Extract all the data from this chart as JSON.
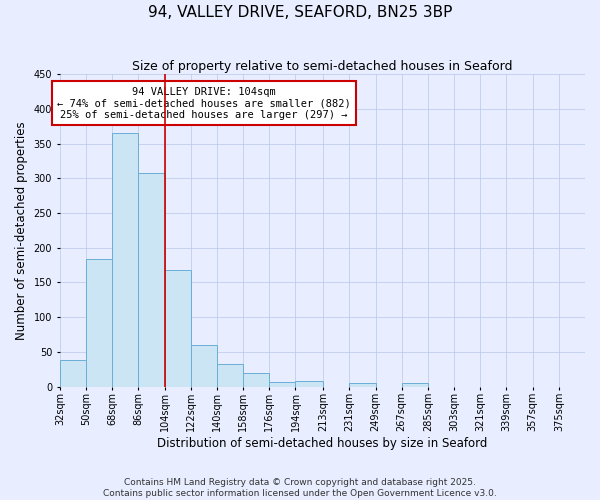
{
  "title": "94, VALLEY DRIVE, SEAFORD, BN25 3BP",
  "subtitle": "Size of property relative to semi-detached houses in Seaford",
  "xlabel": "Distribution of semi-detached houses by size in Seaford",
  "ylabel": "Number of semi-detached properties",
  "bin_edges": [
    32,
    50,
    68,
    86,
    104,
    122,
    140,
    158,
    176,
    194,
    213,
    231,
    249,
    267,
    285,
    303,
    321,
    339,
    357,
    375,
    393
  ],
  "counts": [
    38,
    183,
    365,
    308,
    168,
    60,
    33,
    19,
    6,
    8,
    0,
    5,
    0,
    5,
    0,
    0,
    0,
    0,
    0,
    0
  ],
  "bar_facecolor": "#cce5f5",
  "bar_edgecolor": "#6aaed6",
  "vline_x": 104,
  "vline_color": "#cc0000",
  "annotation_title": "94 VALLEY DRIVE: 104sqm",
  "annotation_line1": "← 74% of semi-detached houses are smaller (882)",
  "annotation_line2": "25% of semi-detached houses are larger (297) →",
  "annotation_box_edgecolor": "#cc0000",
  "annotation_box_facecolor": "#ffffff",
  "ylim": [
    0,
    450
  ],
  "yticks": [
    0,
    50,
    100,
    150,
    200,
    250,
    300,
    350,
    400,
    450
  ],
  "background_color": "#e8eeff",
  "footer_line1": "Contains HM Land Registry data © Crown copyright and database right 2025.",
  "footer_line2": "Contains public sector information licensed under the Open Government Licence v3.0.",
  "title_fontsize": 11,
  "subtitle_fontsize": 9,
  "axis_label_fontsize": 8.5,
  "tick_fontsize": 7,
  "footer_fontsize": 6.5,
  "annotation_fontsize": 7.5
}
